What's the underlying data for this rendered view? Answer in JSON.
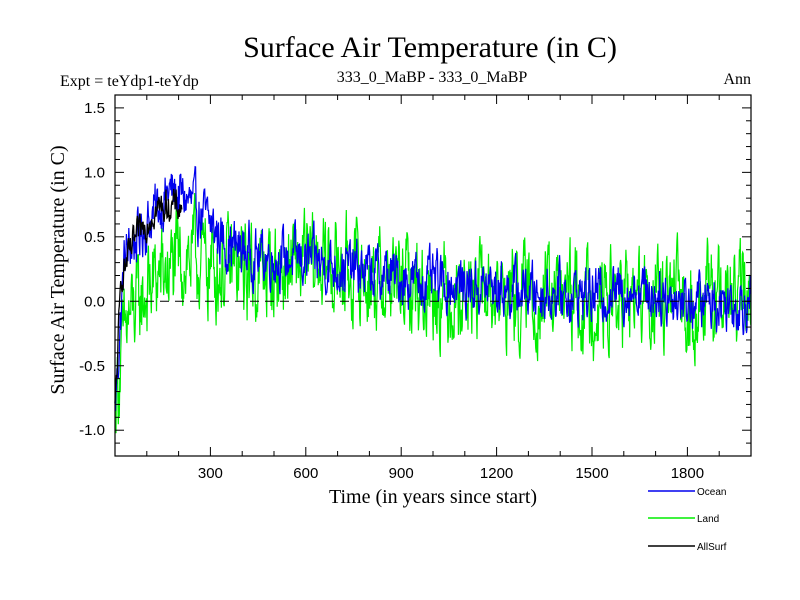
{
  "chart_data": {
    "type": "line",
    "title": "Surface Air Temperature (in C)",
    "subtitle_left": "Expt = teYdp1-teYdp",
    "subtitle_center": "333_0_MaBP - 333_0_MaBP",
    "subtitle_right": "Ann",
    "xlabel": "Time (in years since start)",
    "ylabel": "Surface Air Temperature (in C)",
    "xlim": [
      0,
      2000
    ],
    "ylim": [
      -1.2,
      1.6
    ],
    "x_ticks": [
      300,
      600,
      900,
      1200,
      1500,
      1800
    ],
    "x_tick_labels": [
      "300",
      "600",
      "900",
      "1200",
      "1500",
      "1800"
    ],
    "y_ticks": [
      -1.0,
      -0.5,
      0.0,
      0.5,
      1.0,
      1.5
    ],
    "y_tick_labels": [
      "-1.0",
      "-0.5",
      "0.0",
      "0.5",
      "1.0",
      "1.5"
    ],
    "zero_line": {
      "y": 0.0,
      "style": "dashed"
    },
    "legend_position": "bottom-right",
    "series": [
      {
        "name": "Ocean",
        "color": "#0000ee",
        "x_start": 0,
        "x_end": 2000,
        "trend": [
          [
            0,
            -0.85
          ],
          [
            30,
            0.35
          ],
          [
            100,
            0.6
          ],
          [
            170,
            0.85
          ],
          [
            220,
            0.8
          ],
          [
            280,
            0.65
          ],
          [
            350,
            0.45
          ],
          [
            450,
            0.35
          ],
          [
            600,
            0.32
          ],
          [
            750,
            0.25
          ],
          [
            900,
            0.18
          ],
          [
            1100,
            0.12
          ],
          [
            1300,
            0.08
          ],
          [
            1500,
            0.05
          ],
          [
            1650,
            0.1
          ],
          [
            1800,
            0.0
          ],
          [
            2000,
            0.0
          ]
        ],
        "noise": 0.17
      },
      {
        "name": "Land",
        "color": "#00ee00",
        "x_start": 0,
        "x_end": 2000,
        "trend": [
          [
            0,
            -0.75
          ],
          [
            40,
            -0.15
          ],
          [
            120,
            0.15
          ],
          [
            230,
            0.35
          ],
          [
            330,
            0.25
          ],
          [
            450,
            0.22
          ],
          [
            650,
            0.3
          ],
          [
            800,
            0.18
          ],
          [
            1000,
            0.08
          ],
          [
            1200,
            0.05
          ],
          [
            1500,
            0.0
          ],
          [
            1700,
            0.0
          ],
          [
            2000,
            0.0
          ]
        ],
        "noise": 0.3
      },
      {
        "name": "AllSurf",
        "color": "#000000",
        "x_start": 0,
        "x_end": 210,
        "trend": [
          [
            0,
            -0.85
          ],
          [
            20,
            0.2
          ],
          [
            60,
            0.45
          ],
          [
            120,
            0.7
          ],
          [
            170,
            0.75
          ],
          [
            210,
            0.72
          ]
        ],
        "noise": 0.1
      }
    ]
  }
}
